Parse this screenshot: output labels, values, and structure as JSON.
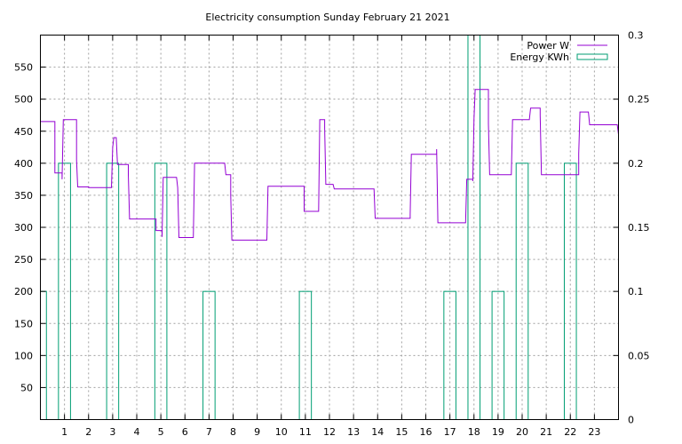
{
  "chart_data": {
    "type": "line",
    "title": "Electricity consumption Sunday February 21 2021",
    "xlabel": "",
    "ylabel": "",
    "y2label": "",
    "xlim": [
      0,
      24
    ],
    "ylim": [
      0,
      600
    ],
    "y2lim": [
      0,
      0.3
    ],
    "x_ticks": [
      1,
      2,
      3,
      4,
      5,
      6,
      7,
      8,
      9,
      10,
      11,
      12,
      13,
      14,
      15,
      16,
      17,
      18,
      19,
      20,
      21,
      22,
      23
    ],
    "y_ticks": [
      50,
      100,
      150,
      200,
      250,
      300,
      350,
      400,
      450,
      500,
      550
    ],
    "y2_ticks": [
      0,
      0.05,
      0.1,
      0.15,
      0.2,
      0.25,
      0.3
    ],
    "grid": true,
    "legend_position": "top-right",
    "colors": {
      "power": "#9400d3",
      "energy": "#009e73"
    },
    "series": [
      {
        "name": "Power W",
        "axis": "left",
        "style": "steps",
        "points": [
          [
            0,
            465
          ],
          [
            0.6,
            465
          ],
          [
            0.6,
            385
          ],
          [
            0.9,
            385
          ],
          [
            0.9,
            375
          ],
          [
            0.95,
            468
          ],
          [
            1.5,
            468
          ],
          [
            1.5,
            405
          ],
          [
            1.55,
            363
          ],
          [
            2.0,
            363
          ],
          [
            2.0,
            362
          ],
          [
            2.95,
            362
          ],
          [
            3.0,
            425
          ],
          [
            3.05,
            440
          ],
          [
            3.15,
            440
          ],
          [
            3.2,
            398
          ],
          [
            3.65,
            398
          ],
          [
            3.65,
            382
          ],
          [
            3.7,
            313
          ],
          [
            4.8,
            313
          ],
          [
            4.8,
            295
          ],
          [
            5.05,
            295
          ],
          [
            5.05,
            285
          ],
          [
            5.1,
            378
          ],
          [
            5.65,
            378
          ],
          [
            5.7,
            362
          ],
          [
            5.75,
            284
          ],
          [
            6.35,
            284
          ],
          [
            6.4,
            400
          ],
          [
            7.65,
            400
          ],
          [
            7.7,
            382
          ],
          [
            7.9,
            382
          ],
          [
            7.9,
            350
          ],
          [
            7.95,
            280
          ],
          [
            9.4,
            280
          ],
          [
            9.45,
            364
          ],
          [
            10.95,
            364
          ],
          [
            10.95,
            325
          ],
          [
            11.55,
            325
          ],
          [
            11.6,
            468
          ],
          [
            11.8,
            468
          ],
          [
            11.8,
            455
          ],
          [
            11.85,
            367
          ],
          [
            12.15,
            367
          ],
          [
            12.2,
            360
          ],
          [
            13.85,
            360
          ],
          [
            13.9,
            314
          ],
          [
            15.35,
            314
          ],
          [
            15.35,
            320
          ],
          [
            15.4,
            414
          ],
          [
            16.45,
            414
          ],
          [
            16.45,
            422
          ],
          [
            16.5,
            307
          ],
          [
            17.65,
            307
          ],
          [
            17.7,
            375
          ],
          [
            17.95,
            375
          ],
          [
            17.95,
            372
          ],
          [
            18.0,
            470
          ],
          [
            18.05,
            515
          ],
          [
            18.6,
            515
          ],
          [
            18.6,
            462
          ],
          [
            18.65,
            382
          ],
          [
            19.55,
            382
          ],
          [
            19.6,
            468
          ],
          [
            20.3,
            468
          ],
          [
            20.35,
            486
          ],
          [
            20.75,
            486
          ],
          [
            20.75,
            475
          ],
          [
            20.8,
            382
          ],
          [
            22.35,
            382
          ],
          [
            22.35,
            415
          ],
          [
            22.4,
            480
          ],
          [
            22.75,
            480
          ],
          [
            22.8,
            460
          ],
          [
            23.95,
            460
          ],
          [
            24.0,
            445
          ],
          [
            24.0,
            428
          ]
        ]
      },
      {
        "name": "Energy KWh",
        "axis": "right",
        "style": "bars",
        "bar_width": 0.5,
        "points": [
          [
            0.0,
            0.1
          ],
          [
            1.0,
            0.2
          ],
          [
            3.0,
            0.2
          ],
          [
            5.0,
            0.2
          ],
          [
            7.0,
            0.1
          ],
          [
            11.0,
            0.1
          ],
          [
            17.0,
            0.1
          ],
          [
            18.0,
            0.3
          ],
          [
            19.0,
            0.1
          ],
          [
            20.0,
            0.2
          ],
          [
            22.0,
            0.2
          ]
        ]
      }
    ]
  }
}
